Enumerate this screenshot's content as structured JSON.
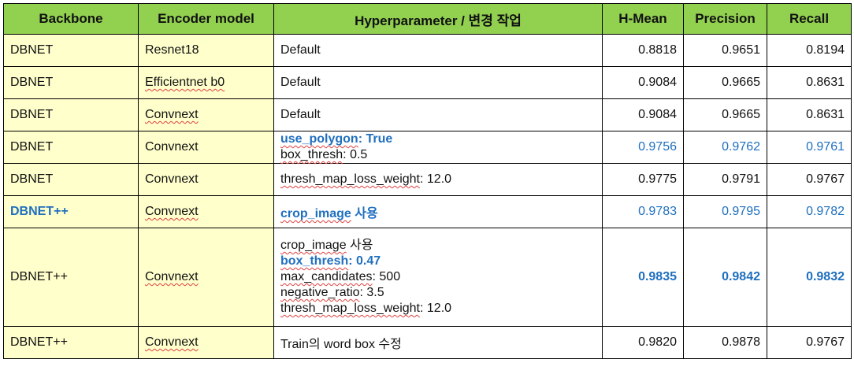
{
  "headers": {
    "backbone": "Backbone",
    "encoder": "Encoder model",
    "hyper": "Hyperparameter / 변경 작업",
    "hmean": "H-Mean",
    "precision": "Precision",
    "recall": "Recall"
  },
  "rows": [
    {
      "backbone": "DBNET",
      "encoder": "Resnet18",
      "hyper": [
        {
          "key": "Default",
          "val": ""
        }
      ],
      "hmean": "0.8818",
      "precision": "0.9651",
      "recall": "0.8194"
    },
    {
      "backbone": "DBNET",
      "encoder": "Efficientnet b0",
      "hyper": [
        {
          "key": "Default",
          "val": ""
        }
      ],
      "hmean": "0.9084",
      "precision": "0.9665",
      "recall": "0.8631"
    },
    {
      "backbone": "DBNET",
      "encoder": "Convnext",
      "hyper": [
        {
          "key": "Default",
          "val": ""
        }
      ],
      "hmean": "0.9084",
      "precision": "0.9665",
      "recall": "0.8631"
    },
    {
      "backbone": "DBNET",
      "encoder": "Convnext",
      "hyper": [
        {
          "key": "use_polygon",
          "val": ": True"
        },
        {
          "key": "box_thresh",
          "val": ": 0.5"
        }
      ],
      "hmean": "0.9756",
      "precision": "0.9762",
      "recall": "0.9761"
    },
    {
      "backbone": "DBNET",
      "encoder": "Convnext",
      "hyper": [
        {
          "key": "thresh_map_loss_weight",
          "val": ": 12.0"
        }
      ],
      "hmean": "0.9775",
      "precision": "0.9791",
      "recall": "0.9767"
    },
    {
      "backbone": "DBNET++",
      "encoder": "Convnext",
      "hyper": [
        {
          "key": "crop_image",
          "val": " 사용"
        }
      ],
      "hmean": "0.9783",
      "precision": "0.9795",
      "recall": "0.9782"
    },
    {
      "backbone": "DBNET++",
      "encoder": "Convnext",
      "hyper": [
        {
          "key": "crop_image",
          "val": " 사용"
        },
        {
          "key": "box_thresh",
          "val": ": 0.47"
        },
        {
          "key": "max_candidates",
          "val": ": 500"
        },
        {
          "key": "negative_ratio",
          "val": ": 3.5"
        },
        {
          "key": "thresh_map_loss_weight",
          "val": ": 12.0"
        }
      ],
      "hmean": "0.9835",
      "precision": "0.9842",
      "recall": "0.9832"
    },
    {
      "backbone": "DBNET++",
      "encoder": "Convnext",
      "hyper": [
        {
          "key": "Train의 word box 수정",
          "val": ""
        }
      ],
      "hmean": "0.9820",
      "precision": "0.9878",
      "recall": "0.9767"
    }
  ],
  "colors": {
    "header_bg": "#92d050",
    "left_cols_bg": "#ffffcc",
    "highlight_blue": "#1f6fbf"
  }
}
